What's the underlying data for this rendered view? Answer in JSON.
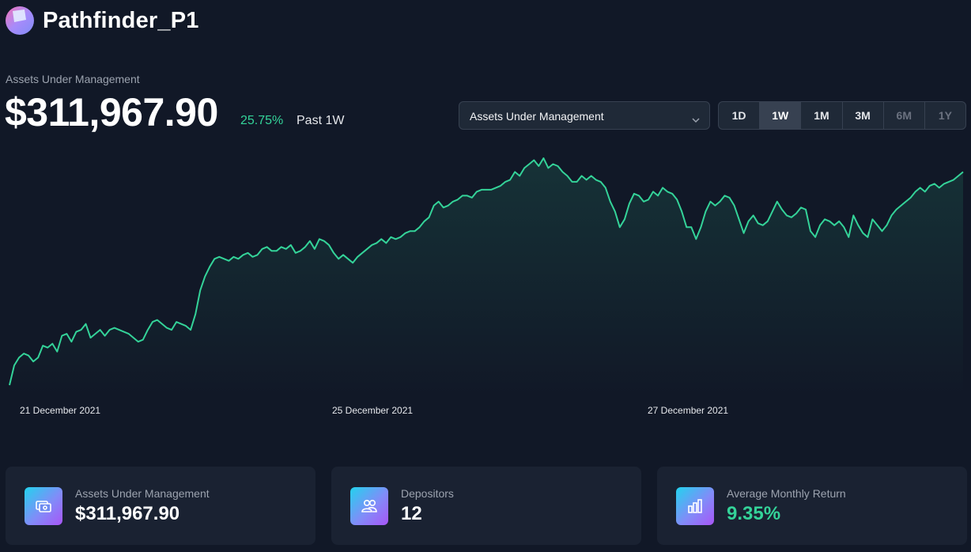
{
  "header": {
    "app_title": "Pathfinder_P1",
    "logo_icon": "pathfinder-logo"
  },
  "summary": {
    "label": "Assets Under Management",
    "value": "$311,967.90",
    "change": "25.75%",
    "period": "Past 1W"
  },
  "controls": {
    "metric_select": "Assets Under Management",
    "ranges": [
      {
        "label": "1D",
        "state": "normal"
      },
      {
        "label": "1W",
        "state": "active"
      },
      {
        "label": "1M",
        "state": "normal"
      },
      {
        "label": "3M",
        "state": "normal"
      },
      {
        "label": "6M",
        "state": "disabled"
      },
      {
        "label": "1Y",
        "state": "disabled"
      }
    ]
  },
  "colors": {
    "background": "#111827",
    "line": "#34d399",
    "positive": "#34d399",
    "card": "#1a2232"
  },
  "chart_data": {
    "type": "area",
    "title": "",
    "xlabel": "",
    "ylabel": "",
    "x_tick_labels": [
      "21 December 2021",
      "25 December 2021",
      "27 December 2021"
    ],
    "grid": false,
    "legend": "none",
    "series": [
      {
        "values": [
          0.02,
          0.12,
          0.16,
          0.18,
          0.17,
          0.14,
          0.16,
          0.22,
          0.21,
          0.23,
          0.19,
          0.27,
          0.28,
          0.24,
          0.29,
          0.3,
          0.33,
          0.26,
          0.28,
          0.3,
          0.27,
          0.3,
          0.31,
          0.3,
          0.29,
          0.28,
          0.26,
          0.24,
          0.25,
          0.3,
          0.34,
          0.35,
          0.33,
          0.31,
          0.3,
          0.34,
          0.33,
          0.32,
          0.3,
          0.38,
          0.5,
          0.57,
          0.62,
          0.66,
          0.67,
          0.66,
          0.65,
          0.67,
          0.66,
          0.68,
          0.69,
          0.67,
          0.68,
          0.71,
          0.72,
          0.7,
          0.7,
          0.72,
          0.71,
          0.73,
          0.69,
          0.7,
          0.72,
          0.75,
          0.71,
          0.76,
          0.75,
          0.73,
          0.69,
          0.66,
          0.68,
          0.66,
          0.64,
          0.67,
          0.69,
          0.71,
          0.73,
          0.74,
          0.76,
          0.74,
          0.77,
          0.76,
          0.77,
          0.79,
          0.8,
          0.8,
          0.82,
          0.85,
          0.87,
          0.93,
          0.95,
          0.92,
          0.93,
          0.95,
          0.96,
          0.98,
          0.98,
          0.97,
          1.0,
          1.01,
          1.01,
          1.01,
          1.02,
          1.03,
          1.05,
          1.06,
          1.1,
          1.08,
          1.12,
          1.14,
          1.16,
          1.13,
          1.17,
          1.12,
          1.14,
          1.13,
          1.1,
          1.08,
          1.05,
          1.05,
          1.08,
          1.06,
          1.08,
          1.06,
          1.05,
          1.02,
          0.95,
          0.9,
          0.82,
          0.86,
          0.94,
          0.99,
          0.98,
          0.95,
          0.96,
          1.0,
          0.98,
          1.02,
          1.0,
          0.99,
          0.96,
          0.9,
          0.82,
          0.82,
          0.76,
          0.82,
          0.9,
          0.95,
          0.93,
          0.95,
          0.98,
          0.97,
          0.93,
          0.86,
          0.79,
          0.85,
          0.88,
          0.84,
          0.83,
          0.85,
          0.9,
          0.95,
          0.91,
          0.88,
          0.87,
          0.89,
          0.92,
          0.91,
          0.8,
          0.77,
          0.83,
          0.86,
          0.85,
          0.83,
          0.85,
          0.82,
          0.77,
          0.88,
          0.83,
          0.79,
          0.77,
          0.86,
          0.83,
          0.8,
          0.83,
          0.88,
          0.91,
          0.93,
          0.95,
          0.97,
          1.0,
          1.02,
          1.0,
          1.03,
          1.04,
          1.02,
          1.04,
          1.05,
          1.06,
          1.08,
          1.1
        ]
      }
    ],
    "ylim": [
      0,
      1.25
    ]
  },
  "cards": [
    {
      "label": "Assets Under Management",
      "value": "$311,967.90",
      "icon": "money-icon",
      "value_color": "white"
    },
    {
      "label": "Depositors",
      "value": "12",
      "icon": "users-icon",
      "value_color": "white"
    },
    {
      "label": "Average Monthly Return",
      "value": "9.35%",
      "icon": "bar-chart-icon",
      "value_color": "green"
    }
  ]
}
